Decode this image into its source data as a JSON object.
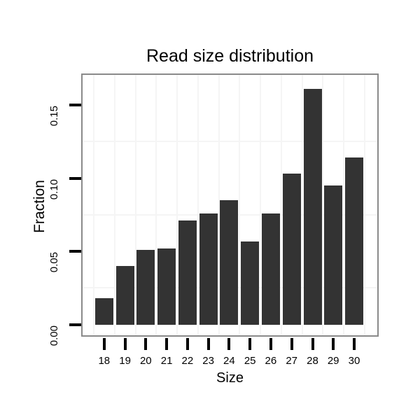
{
  "chart_data": {
    "type": "bar",
    "title": "Read size distribution",
    "xlabel": "Size",
    "ylabel": "Fraction",
    "categories": [
      "18",
      "19",
      "20",
      "21",
      "22",
      "23",
      "24",
      "25",
      "26",
      "27",
      "28",
      "29",
      "30"
    ],
    "values": [
      0.018,
      0.04,
      0.051,
      0.052,
      0.071,
      0.076,
      0.085,
      0.057,
      0.076,
      0.103,
      0.161,
      0.095,
      0.114
    ],
    "y_tick_labels": [
      "0.00",
      "0.05",
      "0.10",
      "0.15"
    ],
    "y_tick_values": [
      0.0,
      0.05,
      0.1,
      0.15
    ],
    "y_minor_gridlines": [
      0.025,
      0.075,
      0.125
    ],
    "ylim": [
      -0.0073,
      0.1705
    ],
    "grid": "minor gridlines only, no legend",
    "legend_position": "none",
    "colors": {
      "bar": "#333333",
      "panel_border": "#8a8a8a",
      "gridline": "#f5f5f5",
      "tick": "#000000",
      "text": "#000000",
      "background": "#ffffff"
    }
  }
}
